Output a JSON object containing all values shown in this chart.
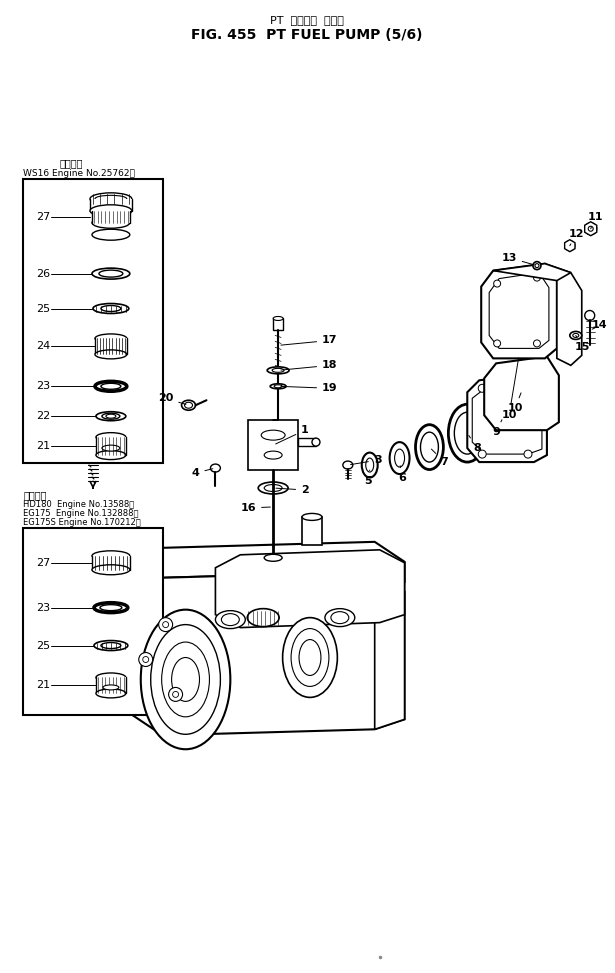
{
  "title_line1": "PT  フェエル  ポンプ",
  "title_line2": "FIG. 455  PT FUEL PUMP (5/6)",
  "bg_color": "#ffffff",
  "lc": "#000000",
  "figsize": [
    6.15,
    9.73
  ],
  "dpi": 100,
  "box1_header1": "適用号機",
  "box1_header2": "WS16 Engine No.25762～",
  "box2_header1": "適用号機",
  "box2_header2": "HD180  Engine No.13588～",
  "box2_header3": "EG175  Engine No.132888～",
  "box2_header4": "EG175S Engine No.170212～"
}
